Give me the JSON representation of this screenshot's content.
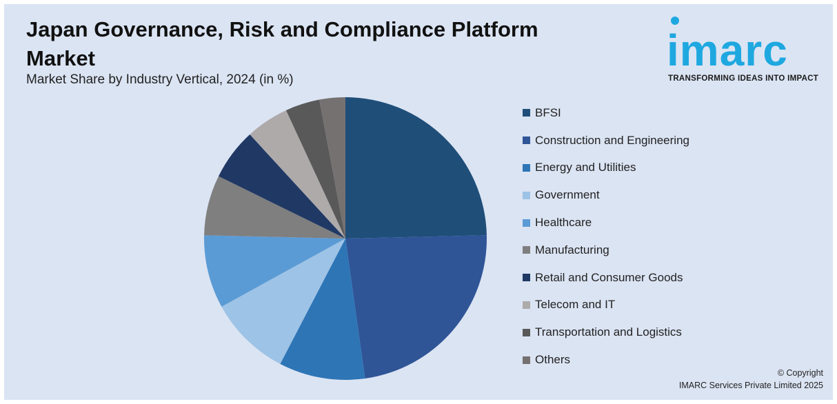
{
  "title": "Japan Governance, Risk and Compliance Platform Market",
  "subtitle": "Market Share by Industry Vertical, 2024 (in %)",
  "logo": {
    "word": "imarc",
    "tagline": "TRANSFORMING IDEAS INTO IMPACT"
  },
  "copyright": {
    "line1": "© Copyright",
    "line2": "IMARC Services Private Limited 2025"
  },
  "chart_data": {
    "type": "pie",
    "title": "Japan Governance, Risk and Compliance Platform Market",
    "subtitle": "Market Share by Industry Vertical, 2024 (in %)",
    "legend_position": "right",
    "categories": [
      "BFSI",
      "Construction and Engineering",
      "Energy and Utilities",
      "Government",
      "Healthcare",
      "Manufacturing",
      "Retail and Consumer Goods",
      "Telecom and IT",
      "Transportation and Logistics",
      "Others"
    ],
    "values": [
      25,
      23.5,
      10,
      9.5,
      8.5,
      7,
      6,
      5,
      4,
      3
    ],
    "colors": [
      "#1f4e79",
      "#2f5597",
      "#2e75b6",
      "#9dc3e6",
      "#5b9bd5",
      "#7f7f7f",
      "#203864",
      "#aeaaaa",
      "#595959",
      "#767171"
    ]
  }
}
